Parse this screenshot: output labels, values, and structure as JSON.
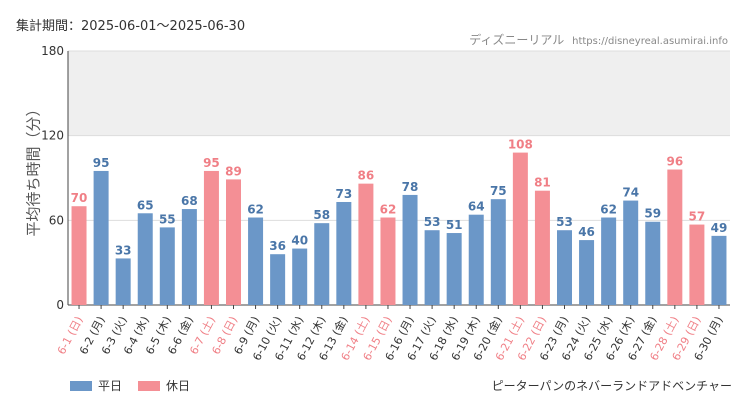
{
  "header": {
    "period": "集計期間：2025-06-01〜2025-06-30",
    "credit_brand": "ディズニーリアル",
    "credit_url": "https://disneyreal.asumirai.info"
  },
  "legend": {
    "weekday_label": "平日",
    "holiday_label": "休日"
  },
  "attraction_name": "ピーターパンのネバーランドアドベンチャー",
  "colors": {
    "weekday": "#6b97c8",
    "holiday": "#f48f95",
    "weekday_text": "#4a76a8",
    "holiday_text": "#f07f86",
    "band": "#efefef",
    "grid": "#dddddd"
  },
  "chart_data": {
    "type": "bar",
    "ylabel": "平均待ち時間（分）",
    "ylim": [
      0,
      180
    ],
    "yticks": [
      0,
      60,
      120,
      180
    ],
    "highlight_band": [
      120,
      180
    ],
    "categories": [
      "6-1 (日)",
      "6-2 (月)",
      "6-3 (火)",
      "6-4 (水)",
      "6-5 (木)",
      "6-6 (金)",
      "6-7 (土)",
      "6-8 (日)",
      "6-9 (月)",
      "6-10 (火)",
      "6-11 (水)",
      "6-12 (木)",
      "6-13 (金)",
      "6-14 (土)",
      "6-15 (日)",
      "6-16 (月)",
      "6-17 (火)",
      "6-18 (水)",
      "6-19 (木)",
      "6-20 (金)",
      "6-21 (土)",
      "6-22 (日)",
      "6-23 (月)",
      "6-24 (火)",
      "6-25 (水)",
      "6-26 (木)",
      "6-27 (金)",
      "6-28 (土)",
      "6-29 (日)",
      "6-30 (月)"
    ],
    "values": [
      70,
      95,
      33,
      65,
      55,
      68,
      95,
      89,
      62,
      36,
      40,
      58,
      73,
      86,
      62,
      78,
      53,
      51,
      64,
      75,
      108,
      81,
      53,
      46,
      62,
      74,
      59,
      96,
      57,
      49
    ],
    "holiday": [
      true,
      false,
      false,
      false,
      false,
      false,
      true,
      true,
      false,
      false,
      false,
      false,
      false,
      true,
      true,
      false,
      false,
      false,
      false,
      false,
      true,
      true,
      false,
      false,
      false,
      false,
      false,
      true,
      true,
      false
    ],
    "series": [
      {
        "name": "平日"
      },
      {
        "name": "休日"
      }
    ]
  }
}
